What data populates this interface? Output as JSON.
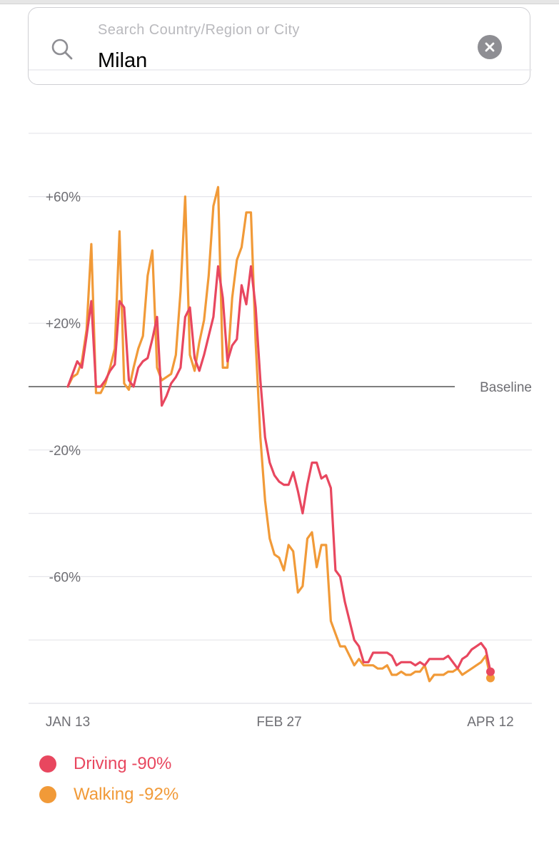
{
  "search": {
    "placeholder": "Search Country/Region or City",
    "value": "Milan",
    "icon": "search-icon",
    "clear_icon": "clear-icon"
  },
  "colors": {
    "driving": "#e8475f",
    "walking": "#f19a38",
    "grid": "#e5e5ea",
    "baseline": "#555555"
  },
  "chart_data": {
    "type": "line",
    "baseline_label": "Baseline",
    "y_ticks": [
      {
        "value": 60,
        "label": "+60%"
      },
      {
        "value": 20,
        "label": "+20%"
      },
      {
        "value": -20,
        "label": "-20%"
      },
      {
        "value": -60,
        "label": "-60%"
      }
    ],
    "grid_values": [
      100,
      80,
      60,
      40,
      20,
      -20,
      -40,
      -60,
      -80,
      -100
    ],
    "ylim": [
      -100,
      80
    ],
    "x_ticks": [
      {
        "day": 0,
        "label": "JAN 13"
      },
      {
        "day": 45,
        "label": "FEB 27"
      },
      {
        "day": 90,
        "label": "APR 12"
      }
    ],
    "xlim": [
      0,
      90
    ],
    "series": [
      {
        "name": "Driving",
        "legend": "Driving -90%",
        "values": [
          0,
          4,
          8,
          6,
          16,
          27,
          0,
          0,
          2,
          5,
          7,
          27,
          25,
          2,
          0,
          6,
          8,
          9,
          15,
          22,
          -6,
          -3,
          1,
          3,
          6,
          22,
          25,
          9,
          5,
          10,
          16,
          22,
          38,
          28,
          8,
          13,
          15,
          32,
          26,
          38,
          25,
          2,
          -16,
          -24,
          -28,
          -30,
          -31,
          -31,
          -27,
          -33,
          -40,
          -31,
          -24,
          -24,
          -29,
          -28,
          -32,
          -58,
          -60,
          -68,
          -74,
          -80,
          -82,
          -87,
          -87,
          -84,
          -84,
          -84,
          -84,
          -85,
          -88,
          -87,
          -87,
          -87,
          -88,
          -87,
          -88,
          -86,
          -86,
          -86,
          -86,
          -85,
          -87,
          -89,
          -86,
          -85,
          -83,
          -82,
          -81,
          -83,
          -90
        ],
        "end_value": -90
      },
      {
        "name": "Walking",
        "legend": "Walking -92%",
        "values": [
          0,
          3,
          4,
          8,
          18,
          45,
          -2,
          -2,
          1,
          6,
          12,
          49,
          1,
          -1,
          6,
          12,
          16,
          35,
          43,
          6,
          2,
          3,
          4,
          10,
          30,
          60,
          10,
          5,
          14,
          21,
          35,
          57,
          63,
          6,
          6,
          28,
          40,
          44,
          55,
          55,
          14,
          -16,
          -36,
          -48,
          -53,
          -54,
          -58,
          -50,
          -52,
          -65,
          -63,
          -48,
          -46,
          -57,
          -50,
          -50,
          -74,
          -78,
          -82,
          -82,
          -85,
          -88,
          -86,
          -88,
          -88,
          -88,
          -89,
          -89,
          -88,
          -91,
          -91,
          -90,
          -91,
          -91,
          -90,
          -90,
          -88,
          -93,
          -91,
          -91,
          -91,
          -90,
          -90,
          -89,
          -91,
          -90,
          -89,
          -88,
          -87,
          -85,
          -92
        ],
        "end_value": -92
      }
    ]
  }
}
